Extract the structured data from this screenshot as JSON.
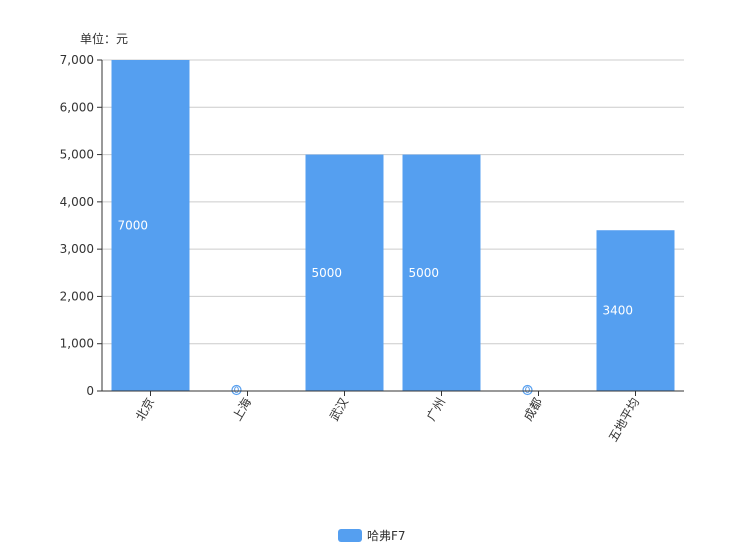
{
  "chart_data": {
    "type": "bar",
    "unit_label": "单位：元",
    "categories": [
      "北京",
      "上海",
      "武汉",
      "广州",
      "成都",
      "五地平均"
    ],
    "series": [
      {
        "name": "哈弗F7",
        "values": [
          7000,
          0,
          5000,
          5000,
          0,
          3400
        ],
        "color": "#559ff0"
      }
    ],
    "data_labels": [
      "7000",
      "0",
      "5000",
      "5000",
      "0",
      "3400"
    ],
    "y_ticks": [
      "0",
      "1,000",
      "2,000",
      "3,000",
      "4,000",
      "5,000",
      "6,000",
      "7,000"
    ],
    "ylim": [
      0,
      7000
    ],
    "grid": true,
    "legend_position": "bottom"
  }
}
